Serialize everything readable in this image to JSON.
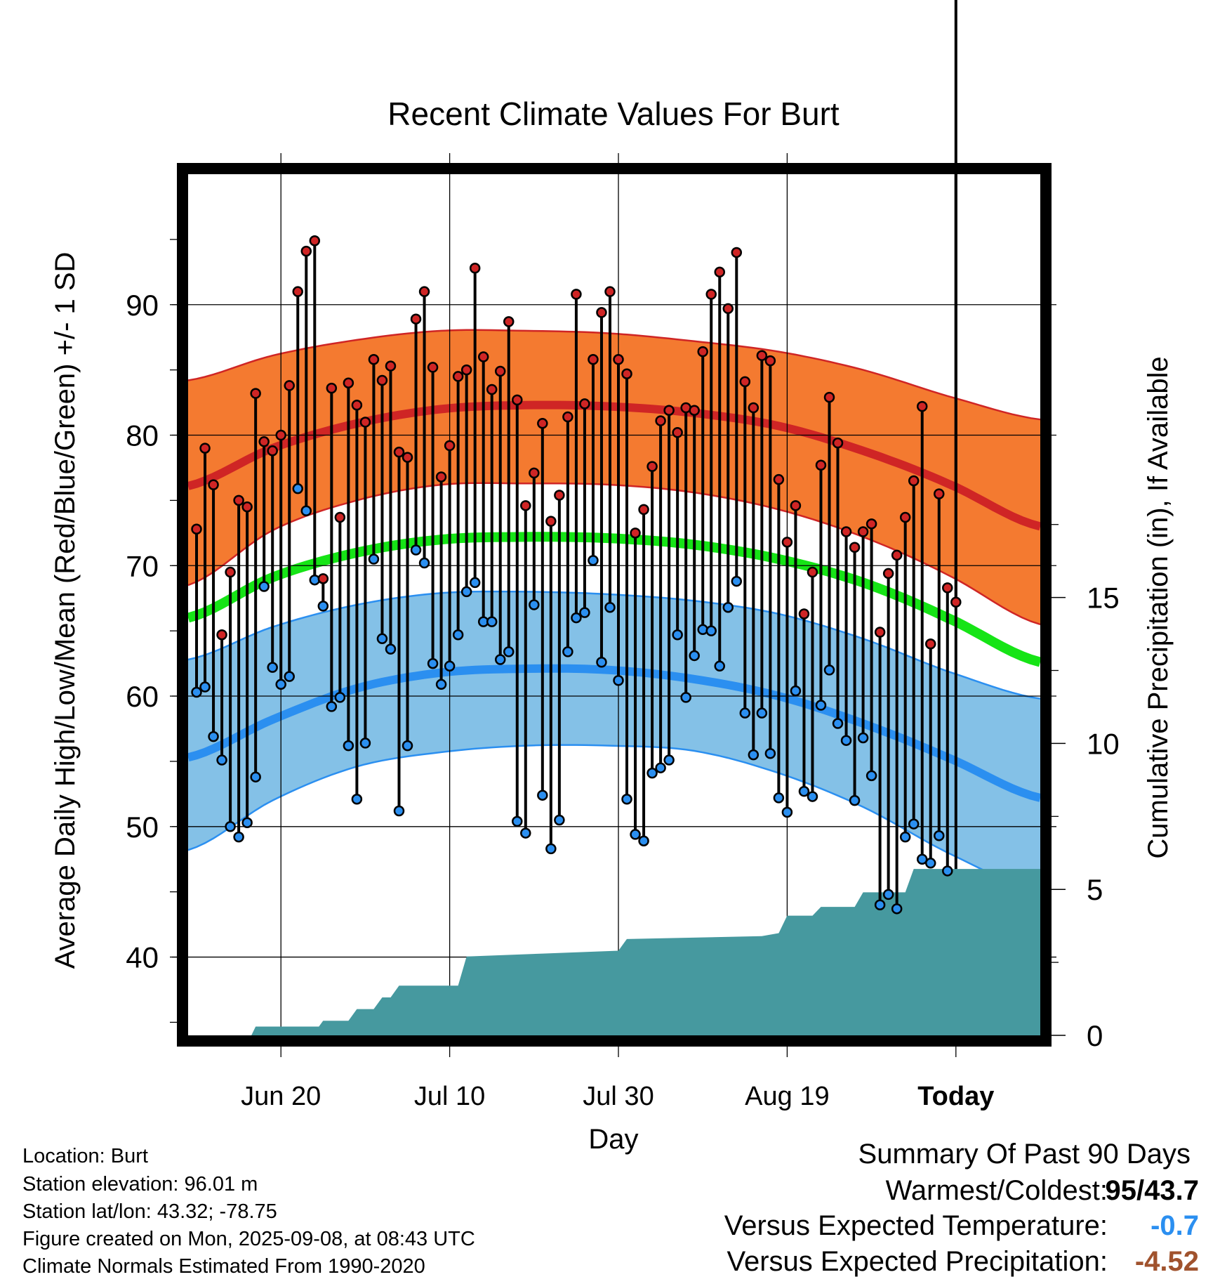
{
  "chart_data": {
    "type": "line",
    "title": "Recent Climate Values For Burt",
    "xlabel": "Day",
    "ylabel": "Average Daily High/Low/Mean (Red/Blue/Green) +/- 1 SD",
    "y2label": "Cumulative Precipitation (in), If Available",
    "xticks": [
      "Jun 20",
      "Jul 10",
      "Jul 30",
      "Aug 19",
      "Today"
    ],
    "xticks_day_index": [
      11,
      31,
      51,
      71,
      91
    ],
    "x_range_day_index": [
      0,
      101
    ],
    "ylim": [
      34,
      100
    ],
    "yticks": [
      40,
      50,
      60,
      70,
      80,
      90
    ],
    "y2lim": [
      0,
      29.5
    ],
    "y2ticks": [
      0,
      5,
      10,
      15
    ],
    "today_label": [
      "90",
      "Days"
    ],
    "colors": {
      "high_band": "#f47a30",
      "high_line": "#cf2525",
      "low_band": "#84c1e7",
      "low_line": "#2b8ff0",
      "mean_line": "#16e416",
      "precip": "#46999f",
      "high_dot": "#cf2525",
      "low_dot": "#2b8ff0"
    },
    "normals_knots": {
      "day": [
        0,
        10,
        20,
        30,
        40,
        50,
        60,
        70,
        80,
        90,
        101
      ],
      "high_mean": [
        76.1,
        79.0,
        80.9,
        82.0,
        82.3,
        82.2,
        81.7,
        80.7,
        78.8,
        76.3,
        73.0
      ],
      "high_upper": [
        84.2,
        86.1,
        87.3,
        88.0,
        88.0,
        87.8,
        87.2,
        86.4,
        85.0,
        83.0,
        81.2
      ],
      "high_lower": [
        68.5,
        72.7,
        75.0,
        76.2,
        76.3,
        76.2,
        75.6,
        74.3,
        72.2,
        69.3,
        65.5
      ],
      "mean": [
        66.0,
        69.1,
        71.0,
        72.0,
        72.2,
        72.1,
        71.6,
        70.5,
        68.7,
        66.0,
        62.6
      ],
      "low_mean": [
        55.3,
        58.2,
        60.6,
        61.8,
        62.1,
        62.0,
        61.3,
        60.0,
        57.9,
        55.3,
        52.2
      ],
      "low_upper": [
        62.8,
        65.3,
        67.0,
        67.9,
        68.0,
        67.8,
        67.3,
        66.3,
        64.4,
        61.9,
        59.8
      ],
      "low_lower": [
        48.2,
        52.0,
        54.6,
        55.7,
        56.2,
        56.2,
        55.8,
        54.1,
        51.5,
        48.0,
        45.0
      ]
    },
    "series": [
      {
        "name": "High",
        "values": [
          72.8,
          79.0,
          76.2,
          64.7,
          69.5,
          75.0,
          74.5,
          83.2,
          79.5,
          78.8,
          80.0,
          83.8,
          91.0,
          94.1,
          94.9,
          69.0,
          83.6,
          73.7,
          84.0,
          82.3,
          81.0,
          85.8,
          84.2,
          85.3,
          78.7,
          78.3,
          88.9,
          91.0,
          85.2,
          76.8,
          79.2,
          84.5,
          85.0,
          92.8,
          86.0,
          83.5,
          84.9,
          88.7,
          82.7,
          74.6,
          77.1,
          80.9,
          73.4,
          75.4,
          81.4,
          90.8,
          82.4,
          85.8,
          89.4,
          91.0,
          85.8,
          84.7,
          72.5,
          74.3,
          77.6,
          81.1,
          81.9,
          80.2,
          82.1,
          81.9,
          86.4,
          90.8,
          92.5,
          89.7,
          94.0,
          84.1,
          82.1,
          86.1,
          85.7,
          76.6,
          71.8,
          74.6,
          66.3,
          69.5,
          77.7,
          82.9,
          79.4,
          72.6,
          71.4,
          72.6,
          73.2,
          64.9,
          69.4,
          70.8,
          73.7,
          76.5,
          82.2,
          64.0,
          75.5,
          68.3,
          67.2
        ]
      },
      {
        "name": "Low",
        "values": [
          60.3,
          60.7,
          56.9,
          55.1,
          50.0,
          49.2,
          50.3,
          53.8,
          68.4,
          62.2,
          60.9,
          61.5,
          75.9,
          74.2,
          68.9,
          66.9,
          59.2,
          59.9,
          56.2,
          52.1,
          56.4,
          70.5,
          64.4,
          63.6,
          51.2,
          56.2,
          71.2,
          70.2,
          62.5,
          60.9,
          62.3,
          64.7,
          68.0,
          68.7,
          65.7,
          65.7,
          62.8,
          63.4,
          50.4,
          49.5,
          67.0,
          52.4,
          48.3,
          50.5,
          63.4,
          66.0,
          66.4,
          70.4,
          62.6,
          66.8,
          61.2,
          52.1,
          49.4,
          48.9,
          54.1,
          54.5,
          55.1,
          64.7,
          59.9,
          63.1,
          65.1,
          65.0,
          62.3,
          66.8,
          68.8,
          58.7,
          55.5,
          58.7,
          55.6,
          52.2,
          51.1,
          60.4,
          52.7,
          52.3,
          59.3,
          62.0,
          57.9,
          56.6,
          52.0,
          56.8,
          53.9,
          44.0,
          44.8,
          43.7,
          49.2,
          50.2,
          47.5,
          47.2,
          49.3,
          46.6
        ]
      }
    ],
    "precipitation": {
      "day_index": [
        0,
        7.5,
        8,
        15.5,
        16,
        19,
        20,
        22,
        23,
        24,
        25,
        32,
        33,
        42,
        51,
        52,
        68,
        70,
        71,
        74,
        75,
        79,
        80,
        85,
        86,
        91,
        101
      ],
      "cumulative_in": [
        0,
        0,
        0.3,
        0.3,
        0.5,
        0.5,
        0.9,
        0.9,
        1.3,
        1.3,
        1.7,
        1.7,
        2.7,
        2.8,
        2.9,
        3.3,
        3.4,
        3.5,
        4.1,
        4.1,
        4.4,
        4.4,
        4.9,
        4.9,
        5.7,
        5.7,
        5.7
      ]
    }
  },
  "info": {
    "location": "Location: Burt",
    "elevation": "Station elevation: 96.01 m",
    "latlon": "Station lat/lon: 43.32; -78.75",
    "created": "Figure created on Mon, 2025-09-08, at 08:43 UTC",
    "normals": "Climate Normals Estimated From 1990-2020"
  },
  "summary": {
    "heading": "Summary Of Past 90 Days",
    "warm_cold_label": "Warmest/Coldest:",
    "warm_value": "95",
    "slash": "/",
    "cold_value": "43.7",
    "temp_label": "Versus Expected Temperature:",
    "temp_value": "-0.7",
    "temp_color": "#2b8ff0",
    "precip_label": "Versus Expected Precipitation:",
    "precip_value": "-4.52",
    "precip_color": "#a0522d"
  }
}
